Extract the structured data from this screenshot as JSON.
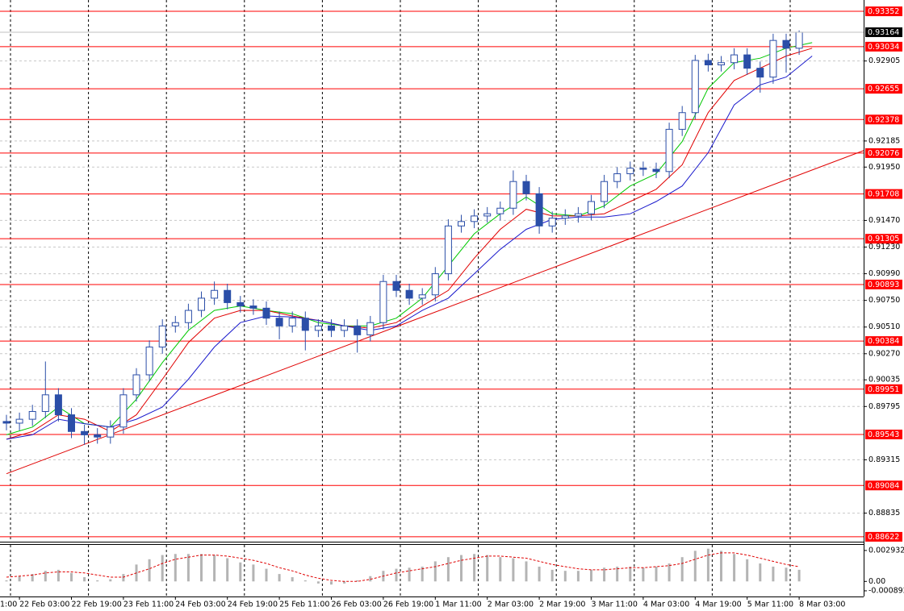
{
  "chart_data": [
    {
      "type": "candlestick",
      "color": "#2b4ea8",
      "ylim": [
        0.88578,
        0.93454
      ],
      "yticks": [
        0.92905,
        0.92185,
        {
          "value": 0.9195,
          "label": "0.91950"
        },
        {
          "value": 0.9147,
          "label": "0.91470"
        },
        {
          "value": 0.9123,
          "label": "0.91230"
        },
        {
          "value": 0.9099,
          "label": "0.90990"
        },
        {
          "value": 0.9075,
          "label": "0.90750"
        },
        {
          "value": 0.9051,
          "label": "0.90510"
        },
        {
          "value": 0.9027,
          "label": "0.90270"
        },
        0.90035,
        0.89795,
        0.89315,
        0.88835
      ],
      "grid": true,
      "xticks": [
        {
          "value": -3,
          "label": "1:00"
        },
        {
          "value": 1,
          "label": "22 Feb 03:00"
        },
        {
          "value": 5,
          "label": "22 Feb 19:00"
        },
        {
          "value": 9,
          "label": "23 Feb 11:00"
        },
        {
          "value": 13,
          "label": "24 Feb 03:00"
        },
        {
          "value": 17,
          "label": "24 Feb 19:00"
        },
        {
          "value": 21,
          "label": "25 Feb 11:00"
        },
        {
          "value": 25,
          "label": "26 Feb 03:00"
        },
        {
          "value": 29,
          "label": "26 Feb 19:00"
        },
        {
          "value": 33,
          "label": "1 Mar 11:00"
        },
        {
          "value": 37,
          "label": "2 Mar 03:00"
        },
        {
          "value": 41,
          "label": "2 Mar 19:00"
        },
        {
          "value": 45,
          "label": "3 Mar 11:00"
        },
        {
          "value": 49,
          "label": "4 Mar 03:00"
        },
        {
          "value": 53,
          "label": "4 Mar 19:00"
        },
        {
          "value": 57,
          "label": "5 Mar 11:00"
        },
        {
          "value": 61,
          "label": "8 Mar 03:00"
        }
      ],
      "open": [
        0.8966,
        0.89645,
        0.8968,
        0.8975,
        0.899,
        0.8972,
        0.8957,
        0.8954,
        0.8952,
        0.8961,
        0.899,
        0.9008,
        0.9033,
        0.9052,
        0.9055,
        0.9066,
        0.9077,
        0.9084,
        0.9073,
        0.907,
        0.9068,
        0.9059,
        0.9052,
        0.9059,
        0.9048,
        0.9052,
        0.9048,
        0.9052,
        0.9044,
        0.9055,
        0.9092,
        0.9084,
        0.9077,
        0.908,
        0.9099,
        0.9142,
        0.9146,
        0.9151,
        0.9153,
        0.9158,
        0.9182,
        0.9171,
        0.9142,
        0.9149,
        0.9151,
        0.9153,
        0.9164,
        0.9182,
        0.9189,
        0.9194,
        0.9193,
        0.9191,
        0.9229,
        0.9244,
        0.9291,
        0.9287,
        0.9289,
        0.9296,
        0.9284,
        0.9276,
        0.9309,
        0.9302
      ],
      "high": [
        0.8972,
        0.8974,
        0.8981,
        0.902,
        0.8996,
        0.8978,
        0.8963,
        0.896,
        0.8967,
        0.8996,
        0.9014,
        0.9039,
        0.9058,
        0.9061,
        0.9072,
        0.9083,
        0.9092,
        0.909,
        0.9079,
        0.9076,
        0.9074,
        0.9065,
        0.9065,
        0.9065,
        0.9058,
        0.9058,
        0.9058,
        0.9058,
        0.9061,
        0.9098,
        0.9098,
        0.909,
        0.9086,
        0.9105,
        0.9148,
        0.9152,
        0.9157,
        0.9159,
        0.9164,
        0.9192,
        0.9188,
        0.9177,
        0.9155,
        0.9157,
        0.9159,
        0.917,
        0.9188,
        0.9195,
        0.92,
        0.92,
        0.9199,
        0.9235,
        0.925,
        0.9296,
        0.9297,
        0.9295,
        0.9302,
        0.9302,
        0.929,
        0.9315,
        0.9315,
        0.9318
      ],
      "low": [
        0.8958,
        0.8958,
        0.8962,
        0.8969,
        0.8966,
        0.8951,
        0.8945,
        0.8946,
        0.8946,
        0.8955,
        0.8984,
        0.9002,
        0.9027,
        0.9046,
        0.9049,
        0.906,
        0.9071,
        0.9067,
        0.9064,
        0.9062,
        0.9053,
        0.904,
        0.9046,
        0.903,
        0.9042,
        0.9042,
        0.9042,
        0.9028,
        0.9038,
        0.9049,
        0.9078,
        0.9071,
        0.9071,
        0.9074,
        0.9093,
        0.9136,
        0.914,
        0.9145,
        0.9147,
        0.9152,
        0.9165,
        0.9135,
        0.9136,
        0.9143,
        0.9145,
        0.9147,
        0.9158,
        0.9176,
        0.9183,
        0.9187,
        0.9185,
        0.9185,
        0.9223,
        0.9238,
        0.9281,
        0.9281,
        0.9283,
        0.9278,
        0.9262,
        0.927,
        0.928,
        0.9296
      ],
      "close": [
        0.89645,
        0.8968,
        0.8975,
        0.899,
        0.8972,
        0.8957,
        0.8954,
        0.8952,
        0.8961,
        0.899,
        0.9008,
        0.9033,
        0.9052,
        0.9055,
        0.9066,
        0.9077,
        0.9084,
        0.9073,
        0.907,
        0.9068,
        0.9059,
        0.9052,
        0.9059,
        0.9048,
        0.9052,
        0.9048,
        0.9052,
        0.9044,
        0.9055,
        0.9092,
        0.9084,
        0.9077,
        0.908,
        0.9099,
        0.9142,
        0.9146,
        0.9151,
        0.9153,
        0.9158,
        0.9182,
        0.9171,
        0.9142,
        0.9149,
        0.9151,
        0.9153,
        0.9164,
        0.9182,
        0.9189,
        0.9194,
        0.9193,
        0.9191,
        0.9229,
        0.9244,
        0.9291,
        0.9287,
        0.9289,
        0.9296,
        0.9284,
        0.9276,
        0.9309,
        0.9302,
        0.93164
      ],
      "series": [
        {
          "color": "#00c800",
          "x": [
            0,
            2,
            4,
            6,
            8,
            10,
            12,
            14,
            16,
            18,
            20,
            22,
            24,
            26,
            28,
            30,
            32,
            34,
            36,
            38,
            40,
            42,
            44,
            46,
            48,
            50,
            52,
            54,
            56,
            58,
            60,
            62
          ],
          "values": [
            0.8954,
            0.8961,
            0.8979,
            0.8964,
            0.8961,
            0.8986,
            0.9019,
            0.9048,
            0.9066,
            0.907,
            0.9066,
            0.9063,
            0.9055,
            0.9052,
            0.9052,
            0.9059,
            0.9077,
            0.9106,
            0.9135,
            0.9153,
            0.9168,
            0.9153,
            0.9151,
            0.916,
            0.9178,
            0.9189,
            0.9218,
            0.9266,
            0.9289,
            0.9293,
            0.9302,
            0.9307
          ]
        },
        {
          "color": "#e00000",
          "x": [
            0,
            2,
            4,
            6,
            8,
            10,
            12,
            14,
            16,
            18,
            20,
            22,
            24,
            26,
            28,
            30,
            32,
            34,
            36,
            38,
            40,
            42,
            44,
            46,
            48,
            50,
            52,
            54,
            56,
            58,
            60,
            62
          ],
          "values": [
            0.895,
            0.8957,
            0.8972,
            0.8968,
            0.8957,
            0.8972,
            0.9004,
            0.9037,
            0.9059,
            0.9066,
            0.9066,
            0.9061,
            0.9057,
            0.9052,
            0.905,
            0.9055,
            0.907,
            0.9084,
            0.9113,
            0.9139,
            0.9157,
            0.9151,
            0.9151,
            0.9153,
            0.9164,
            0.9175,
            0.9197,
            0.9244,
            0.9273,
            0.9284,
            0.9295,
            0.9302
          ]
        },
        {
          "color": "#1a1acc",
          "x": [
            0,
            2,
            4,
            6,
            8,
            10,
            12,
            14,
            16,
            18,
            20,
            22,
            24,
            26,
            28,
            30,
            32,
            34,
            36,
            38,
            40,
            42,
            44,
            46,
            48,
            50,
            52,
            54,
            56,
            58,
            60,
            62
          ],
          "values": [
            0.895,
            0.8954,
            0.8968,
            0.8964,
            0.8961,
            0.8968,
            0.8979,
            0.9004,
            0.9033,
            0.9055,
            0.9061,
            0.906,
            0.9057,
            0.9052,
            0.9048,
            0.9052,
            0.9066,
            0.9077,
            0.9099,
            0.9121,
            0.9139,
            0.9148,
            0.915,
            0.915,
            0.9153,
            0.9164,
            0.9178,
            0.9208,
            0.9251,
            0.9269,
            0.9276,
            0.9295
          ]
        }
      ],
      "trendline": {
        "color": "#e00000",
        "x": [
          0,
          66
        ],
        "values": [
          0.8919,
          0.921
        ]
      },
      "levels": {
        "color": "#ff0000",
        "values": [
          0.93352,
          0.93034,
          0.92655,
          0.92378,
          0.92076,
          0.91708,
          0.91305,
          0.90893,
          0.90384,
          0.89951,
          0.89543,
          0.89084,
          0.88622
        ]
      },
      "current": 0.93164
    },
    {
      "type": "oscillator",
      "ylim": [
        -0.00143,
        0.00346
      ],
      "yticks": [
        0.002932,
        {
          "value": 0,
          "label": "0.00"
        },
        -0.000892
      ],
      "histogram": {
        "color": "#b4b4b4",
        "values": [
          0.0001,
          0.0005,
          0.0007,
          0.001,
          0.0011,
          0.0008,
          0.0004,
          0.0001,
          0.0002,
          0.0007,
          0.0016,
          0.0021,
          0.0025,
          0.0026,
          0.0026,
          0.0026,
          0.0025,
          0.0022,
          0.0018,
          0.0016,
          0.0012,
          0.0007,
          0.0004,
          0.0001,
          -0.0002,
          -0.0003,
          -0.0002,
          0.0001,
          0.0005,
          0.001,
          0.0012,
          0.0013,
          0.0014,
          0.0019,
          0.0023,
          0.0025,
          0.0026,
          0.0025,
          0.0023,
          0.0022,
          0.0019,
          0.0014,
          0.0011,
          0.001,
          0.001,
          0.0011,
          0.0013,
          0.0014,
          0.0014,
          0.0013,
          0.0014,
          0.0017,
          0.0023,
          0.0029,
          0.0031,
          0.0029,
          0.0026,
          0.0021,
          0.0017,
          0.0014,
          0.0013,
          0.0011
        ]
      },
      "signal": {
        "color": "#e00000",
        "values": [
          0.0004,
          0.0005,
          0.0006,
          0.0008,
          0.0009,
          0.0009,
          0.0008,
          0.0006,
          0.0004,
          0.0004,
          0.0008,
          0.0012,
          0.0017,
          0.0021,
          0.0023,
          0.0025,
          0.0025,
          0.0024,
          0.0022,
          0.002,
          0.0017,
          0.0013,
          0.001,
          0.0006,
          0.0003,
          0.0001,
          0,
          0,
          0.0002,
          0.0005,
          0.0008,
          0.001,
          0.0012,
          0.0014,
          0.0017,
          0.002,
          0.0022,
          0.0024,
          0.0024,
          0.0023,
          0.0022,
          0.0019,
          0.0016,
          0.0014,
          0.0012,
          0.0011,
          0.0011,
          0.0012,
          0.0013,
          0.0013,
          0.0014,
          0.0015,
          0.0017,
          0.0021,
          0.0025,
          0.0027,
          0.0027,
          0.0025,
          0.0022,
          0.0019,
          0.0016,
          0.0014
        ]
      }
    }
  ]
}
